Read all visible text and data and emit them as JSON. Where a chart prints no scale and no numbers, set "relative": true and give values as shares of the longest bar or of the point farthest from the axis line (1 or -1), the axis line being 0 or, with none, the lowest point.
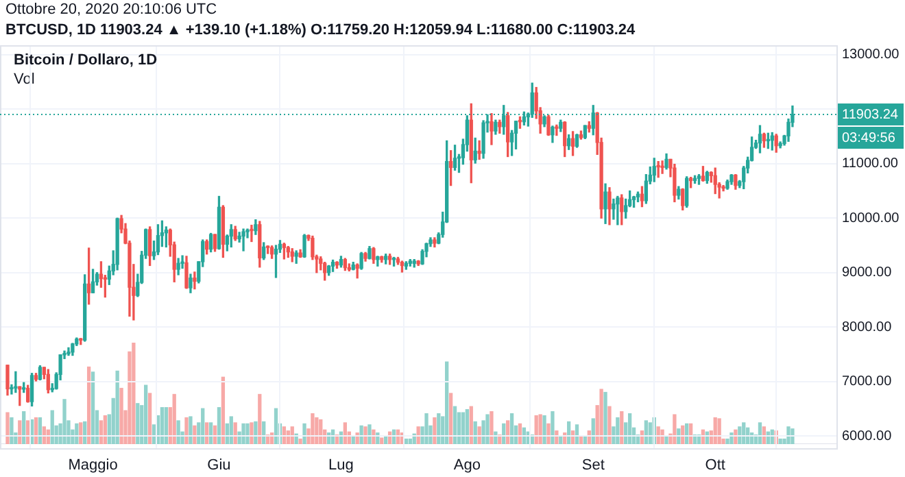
{
  "chart_data": [
    {
      "type": "candlestick",
      "title": "Bitcoin / Dollaro, 1D",
      "subtitle": "BTCUSD, 1D  11903.24 ▲ +139.10 (+1.18%) O:11759.20 H:12059.94 L:11680.00 C:11903.24",
      "annotations": [
        "Ottobre 20, 2020 20:10:06 UTC",
        "03:49:56"
      ],
      "categories": [
        null,
        null,
        null,
        null,
        null,
        null,
        null,
        null,
        null,
        null,
        null,
        null,
        null,
        null,
        null,
        null,
        null,
        null,
        null,
        null,
        null,
        "Maggio",
        null,
        null,
        null,
        null,
        null,
        null,
        null,
        null,
        null,
        null,
        null,
        null,
        null,
        null,
        null,
        null,
        null,
        null,
        null,
        null,
        null,
        null,
        null,
        null,
        null,
        null,
        null,
        null,
        null,
        null,
        "Giu",
        null,
        null,
        null,
        null,
        null,
        null,
        null,
        null,
        null,
        null,
        null,
        null,
        null,
        null,
        null,
        null,
        null,
        null,
        null,
        null,
        null,
        null,
        null,
        null,
        null,
        null,
        null,
        null,
        null,
        "Lug",
        null,
        null,
        null,
        null,
        null,
        null,
        null,
        null,
        null,
        null,
        null,
        null,
        null,
        null,
        null,
        null,
        null,
        null,
        null,
        null,
        null,
        null,
        null,
        null,
        null,
        null,
        null,
        null,
        null,
        null,
        "Ago",
        null,
        null,
        null,
        null,
        null,
        null,
        null,
        null,
        null,
        null,
        null,
        null,
        null,
        null,
        null,
        null,
        null,
        null,
        null,
        null,
        null,
        null,
        null,
        null,
        null,
        null,
        null,
        null,
        null,
        null,
        "Set",
        null,
        null,
        null,
        null,
        null,
        null,
        null,
        null,
        null,
        null,
        null,
        null,
        null,
        null,
        null,
        null,
        null,
        null,
        null,
        null,
        null,
        null,
        null,
        null,
        null,
        null,
        null,
        null,
        null,
        "Ott",
        null,
        null,
        null,
        null,
        null,
        null,
        null,
        null,
        null,
        null,
        null,
        null,
        null,
        null,
        null,
        null,
        null,
        null,
        null
      ],
      "ohlc": [
        [
          7300,
          7300,
          6750,
          6865
        ],
        [
          6865,
          6940,
          6770,
          6880
        ],
        [
          6880,
          7180,
          6800,
          6905
        ],
        [
          6905,
          6905,
          6560,
          6860
        ],
        [
          6860,
          6980,
          6800,
          6875
        ],
        [
          6875,
          6930,
          6620,
          6630
        ],
        [
          6630,
          7150,
          6550,
          7110
        ],
        [
          7110,
          7150,
          7010,
          7040
        ],
        [
          7040,
          7290,
          7030,
          7260
        ],
        [
          7260,
          7260,
          7050,
          7130
        ],
        [
          7130,
          7220,
          6790,
          6850
        ],
        [
          6850,
          6960,
          6810,
          6870
        ],
        [
          6870,
          7160,
          6860,
          7130
        ],
        [
          7130,
          7490,
          7030,
          7490
        ],
        [
          7490,
          7560,
          7420,
          7510
        ],
        [
          7510,
          7620,
          7480,
          7540
        ],
        [
          7540,
          7700,
          7480,
          7690
        ],
        [
          7690,
          7800,
          7660,
          7780
        ],
        [
          7780,
          7790,
          7680,
          7760
        ],
        [
          7760,
          8960,
          7740,
          8790
        ],
        [
          8790,
          9450,
          8420,
          8630
        ],
        [
          8630,
          9060,
          8630,
          8830
        ],
        [
          8830,
          9000,
          8770,
          8970
        ],
        [
          8970,
          9200,
          8730,
          8890
        ],
        [
          8890,
          8950,
          8550,
          8880
        ],
        [
          8880,
          9120,
          8780,
          9030
        ],
        [
          9030,
          9400,
          8960,
          9150
        ],
        [
          9150,
          10000,
          9050,
          9990
        ],
        [
          9990,
          10050,
          9730,
          9800
        ],
        [
          9800,
          9900,
          9530,
          9540
        ],
        [
          9540,
          9580,
          8200,
          8730
        ],
        [
          8730,
          9150,
          8130,
          8580
        ],
        [
          8580,
          8970,
          8560,
          8820
        ],
        [
          8820,
          9390,
          8800,
          9320
        ],
        [
          9320,
          9800,
          9260,
          9790
        ],
        [
          9790,
          9840,
          9130,
          9310
        ],
        [
          9310,
          9580,
          9240,
          9380
        ],
        [
          9380,
          9880,
          9330,
          9680
        ],
        [
          9680,
          9950,
          9480,
          9730
        ],
        [
          9730,
          9840,
          9470,
          9780
        ],
        [
          9780,
          9800,
          9300,
          9510
        ],
        [
          9510,
          9560,
          8830,
          9060
        ],
        [
          9060,
          9260,
          8960,
          9170
        ],
        [
          9170,
          9310,
          9080,
          9180
        ],
        [
          9180,
          9300,
          8710,
          8720
        ],
        [
          8720,
          8970,
          8630,
          8900
        ],
        [
          8900,
          9010,
          8700,
          8840
        ],
        [
          8840,
          9200,
          8810,
          9200
        ],
        [
          9200,
          9600,
          9110,
          9570
        ],
        [
          9570,
          9600,
          9340,
          9430
        ],
        [
          9430,
          9720,
          9380,
          9700
        ],
        [
          9700,
          9700,
          9390,
          9440
        ],
        [
          9440,
          10400,
          9430,
          10200
        ],
        [
          10200,
          10230,
          9280,
          9520
        ],
        [
          9520,
          9690,
          9400,
          9670
        ],
        [
          9670,
          9880,
          9470,
          9790
        ],
        [
          9790,
          9850,
          9590,
          9620
        ],
        [
          9620,
          9740,
          9560,
          9670
        ],
        [
          9670,
          9800,
          9400,
          9750
        ],
        [
          9750,
          9800,
          9640,
          9780
        ],
        [
          9780,
          9870,
          9570,
          9770
        ],
        [
          9770,
          9970,
          9700,
          9880
        ],
        [
          9880,
          9940,
          9100,
          9270
        ],
        [
          9270,
          9550,
          9240,
          9470
        ],
        [
          9470,
          9490,
          9350,
          9460
        ],
        [
          9460,
          9490,
          9260,
          9340
        ],
        [
          9340,
          9500,
          8910,
          9430
        ],
        [
          9430,
          9590,
          9370,
          9520
        ],
        [
          9520,
          9540,
          9250,
          9460
        ],
        [
          9460,
          9480,
          9280,
          9380
        ],
        [
          9380,
          9440,
          9200,
          9300
        ],
        [
          9300,
          9400,
          9170,
          9360
        ],
        [
          9360,
          9420,
          9280,
          9290
        ],
        [
          9290,
          9700,
          9280,
          9680
        ],
        [
          9680,
          9690,
          9590,
          9630
        ],
        [
          9630,
          9670,
          9240,
          9290
        ],
        [
          9290,
          9320,
          9000,
          9250
        ],
        [
          9250,
          9290,
          9050,
          9170
        ],
        [
          9170,
          9190,
          8860,
          9000
        ],
        [
          9000,
          9130,
          8950,
          9120
        ],
        [
          9120,
          9230,
          9020,
          9190
        ],
        [
          9190,
          9200,
          9080,
          9140
        ],
        [
          9140,
          9300,
          9100,
          9240
        ],
        [
          9240,
          9260,
          9040,
          9090
        ],
        [
          9090,
          9160,
          9030,
          9060
        ],
        [
          9060,
          9190,
          9050,
          9140
        ],
        [
          9140,
          9160,
          8900,
          9080
        ],
        [
          9080,
          9370,
          9060,
          9350
        ],
        [
          9350,
          9370,
          9210,
          9260
        ],
        [
          9260,
          9480,
          9250,
          9440
        ],
        [
          9440,
          9460,
          9170,
          9240
        ],
        [
          9240,
          9300,
          9120,
          9290
        ],
        [
          9290,
          9300,
          9190,
          9240
        ],
        [
          9240,
          9340,
          9160,
          9300
        ],
        [
          9300,
          9340,
          9150,
          9240
        ],
        [
          9240,
          9280,
          9120,
          9250
        ],
        [
          9250,
          9280,
          9150,
          9190
        ],
        [
          9190,
          9210,
          9010,
          9130
        ],
        [
          9120,
          9200,
          9060,
          9170
        ],
        [
          9170,
          9240,
          9120,
          9210
        ],
        [
          9170,
          9240,
          9100,
          9210
        ],
        [
          9210,
          9220,
          9130,
          9160
        ],
        [
          9160,
          9420,
          9150,
          9390
        ],
        [
          9390,
          9540,
          9290,
          9530
        ],
        [
          9530,
          9640,
          9480,
          9600
        ],
        [
          9600,
          9640,
          9470,
          9540
        ],
        [
          9540,
          9730,
          9530,
          9700
        ],
        [
          9700,
          10110,
          9650,
          9930
        ],
        [
          9930,
          11420,
          9920,
          11040
        ],
        [
          11040,
          11240,
          10600,
          10930
        ],
        [
          10930,
          11340,
          10880,
          11100
        ],
        [
          11100,
          11170,
          10840,
          11110
        ],
        [
          11110,
          11450,
          10990,
          11350
        ],
        [
          11350,
          11880,
          11230,
          11800
        ],
        [
          11800,
          12100,
          10650,
          11070
        ],
        [
          11070,
          11470,
          11010,
          11230
        ],
        [
          11230,
          11420,
          11080,
          11190
        ],
        [
          11190,
          11790,
          11100,
          11750
        ],
        [
          11750,
          11900,
          11580,
          11770
        ],
        [
          11770,
          11920,
          11350,
          11600
        ],
        [
          11600,
          11800,
          11540,
          11760
        ],
        [
          11760,
          11800,
          11560,
          11680
        ],
        [
          11680,
          12070,
          11540,
          11880
        ],
        [
          11880,
          11940,
          11130,
          11400
        ],
        [
          11400,
          11610,
          11150,
          11560
        ],
        [
          11560,
          11780,
          11270,
          11780
        ],
        [
          11780,
          11860,
          11650,
          11770
        ],
        [
          11770,
          11950,
          11710,
          11860
        ],
        [
          11860,
          11930,
          11690,
          11910
        ],
        [
          11910,
          12480,
          11850,
          12300
        ],
        [
          12300,
          12400,
          11830,
          11970
        ],
        [
          11970,
          12030,
          11560,
          11730
        ],
        [
          11730,
          11880,
          11680,
          11860
        ],
        [
          11860,
          11890,
          11520,
          11530
        ],
        [
          11530,
          11690,
          11390,
          11670
        ],
        [
          11670,
          11710,
          11520,
          11650
        ],
        [
          11650,
          11800,
          11590,
          11760
        ],
        [
          11760,
          11770,
          11130,
          11330
        ],
        [
          11330,
          11530,
          11260,
          11460
        ],
        [
          11460,
          11590,
          11150,
          11320
        ],
        [
          11320,
          11540,
          11300,
          11530
        ],
        [
          11530,
          11600,
          11450,
          11480
        ],
        [
          11480,
          11700,
          11460,
          11700
        ],
        [
          11700,
          11770,
          11580,
          11650
        ],
        [
          11650,
          12070,
          11530,
          11930
        ],
        [
          11930,
          11940,
          11170,
          11390
        ],
        [
          11390,
          11470,
          10000,
          10170
        ],
        [
          10170,
          10630,
          9900,
          10480
        ],
        [
          10480,
          10560,
          9880,
          10170
        ],
        [
          10170,
          10350,
          9980,
          10260
        ],
        [
          10260,
          10400,
          9880,
          10370
        ],
        [
          10370,
          10430,
          9880,
          10120
        ],
        [
          10120,
          10350,
          10000,
          10230
        ],
        [
          10230,
          10500,
          10210,
          10340
        ],
        [
          10340,
          10400,
          10200,
          10390
        ],
        [
          10390,
          10480,
          10300,
          10440
        ],
        [
          10440,
          10580,
          10210,
          10320
        ],
        [
          10320,
          10800,
          10270,
          10680
        ],
        [
          10680,
          10940,
          10630,
          10790
        ],
        [
          10790,
          11100,
          10670,
          10950
        ],
        [
          10950,
          11040,
          10750,
          10940
        ],
        [
          10940,
          11050,
          10820,
          10930
        ],
        [
          10930,
          11180,
          10900,
          11080
        ],
        [
          11080,
          11080,
          10760,
          10920
        ],
        [
          10920,
          10990,
          10300,
          10420
        ],
        [
          10420,
          10580,
          10350,
          10530
        ],
        [
          10530,
          10540,
          10150,
          10230
        ],
        [
          10230,
          10760,
          10200,
          10730
        ],
        [
          10730,
          10750,
          10560,
          10690
        ],
        [
          10690,
          10780,
          10640,
          10730
        ],
        [
          10730,
          10800,
          10620,
          10770
        ],
        [
          10770,
          10950,
          10680,
          10690
        ],
        [
          10690,
          10860,
          10640,
          10840
        ],
        [
          10840,
          10850,
          10660,
          10780
        ],
        [
          10780,
          10920,
          10450,
          10620
        ],
        [
          10620,
          10650,
          10370,
          10570
        ],
        [
          10570,
          10600,
          10500,
          10550
        ],
        [
          10550,
          10700,
          10530,
          10670
        ],
        [
          10670,
          10800,
          10620,
          10790
        ],
        [
          10790,
          10800,
          10530,
          10600
        ],
        [
          10600,
          10690,
          10560,
          10670
        ],
        [
          10670,
          10950,
          10540,
          10920
        ],
        [
          10920,
          11120,
          10830,
          11060
        ],
        [
          11060,
          11490,
          11050,
          11300
        ],
        [
          11300,
          11430,
          11280,
          11380
        ],
        [
          11380,
          11700,
          11200,
          11540
        ],
        [
          11540,
          11560,
          11300,
          11420
        ],
        [
          11420,
          11560,
          11280,
          11430
        ],
        [
          11430,
          11570,
          11250,
          11510
        ],
        [
          11510,
          11540,
          11210,
          11330
        ],
        [
          11330,
          11400,
          11290,
          11370
        ],
        [
          11370,
          11520,
          11340,
          11510
        ],
        [
          11510,
          11820,
          11410,
          11760
        ],
        [
          11759.2,
          12059.94,
          11680.0,
          11903.24
        ]
      ],
      "colors": [
        "#ef5350",
        "#26a69a",
        "#26a69a",
        "#ef5350",
        "#26a69a",
        "#ef5350",
        "#26a69a",
        "#ef5350",
        "#26a69a",
        "#ef5350",
        "#ef5350",
        "#26a69a",
        "#26a69a",
        "#26a69a",
        "#26a69a",
        "#26a69a",
        "#26a69a",
        "#26a69a",
        "#ef5350",
        "#26a69a",
        "#ef5350",
        "#26a69a",
        "#26a69a",
        "#ef5350",
        "#ef5350",
        "#26a69a",
        "#26a69a",
        "#26a69a",
        "#ef5350",
        "#ef5350",
        "#ef5350",
        "#ef5350",
        "#26a69a",
        "#26a69a",
        "#26a69a",
        "#ef5350",
        "#26a69a",
        "#26a69a",
        "#26a69a",
        "#26a69a",
        "#ef5350",
        "#ef5350",
        "#26a69a",
        "#26a69a",
        "#ef5350",
        "#26a69a",
        "#ef5350",
        "#26a69a",
        "#26a69a",
        "#ef5350",
        "#26a69a",
        "#ef5350",
        "#26a69a",
        "#ef5350",
        "#26a69a",
        "#26a69a",
        "#ef5350",
        "#26a69a",
        "#26a69a",
        "#26a69a",
        "#ef5350",
        "#26a69a",
        "#ef5350",
        "#26a69a",
        "#ef5350",
        "#ef5350",
        "#26a69a",
        "#26a69a",
        "#ef5350",
        "#ef5350",
        "#ef5350",
        "#26a69a",
        "#ef5350",
        "#26a69a",
        "#ef5350",
        "#ef5350",
        "#ef5350",
        "#ef5350",
        "#ef5350",
        "#26a69a",
        "#26a69a",
        "#ef5350",
        "#26a69a",
        "#ef5350",
        "#ef5350",
        "#26a69a",
        "#ef5350",
        "#26a69a",
        "#ef5350",
        "#26a69a",
        "#ef5350",
        "#26a69a",
        "#ef5350",
        "#26a69a",
        "#ef5350",
        "#26a69a",
        "#ef5350",
        "#ef5350",
        "#26a69a",
        "#26a69a",
        "#26a69a",
        "#ef5350",
        "#26a69a",
        "#26a69a",
        "#26a69a",
        "#ef5350",
        "#26a69a",
        "#26a69a",
        "#26a69a",
        "#ef5350",
        "#26a69a",
        "#26a69a",
        "#26a69a",
        "#26a69a",
        "#ef5350",
        "#26a69a",
        "#ef5350",
        "#26a69a",
        "#26a69a",
        "#ef5350",
        "#26a69a",
        "#ef5350",
        "#26a69a",
        "#ef5350",
        "#26a69a",
        "#26a69a",
        "#ef5350",
        "#26a69a",
        "#26a69a",
        "#26a69a",
        "#ef5350",
        "#ef5350",
        "#26a69a",
        "#ef5350",
        "#26a69a",
        "#ef5350",
        "#26a69a",
        "#ef5350",
        "#26a69a",
        "#ef5350",
        "#26a69a",
        "#ef5350",
        "#26a69a",
        "#ef5350",
        "#26a69a",
        "#ef5350",
        "#ef5350",
        "#26a69a",
        "#ef5350",
        "#26a69a",
        "#26a69a",
        "#ef5350",
        "#26a69a",
        "#26a69a",
        "#26a69a",
        "#26a69a",
        "#ef5350",
        "#26a69a",
        "#26a69a",
        "#26a69a",
        "#ef5350",
        "#ef5350",
        "#26a69a",
        "#ef5350",
        "#ef5350",
        "#26a69a",
        "#ef5350",
        "#26a69a",
        "#ef5350",
        "#26a69a",
        "#26a69a",
        "#ef5350",
        "#26a69a",
        "#ef5350",
        "#ef5350",
        "#ef5350",
        "#ef5350",
        "#26a69a",
        "#26a69a",
        "#ef5350",
        "#26a69a",
        "#26a69a",
        "#26a69a",
        "#26a69a",
        "#26a69a",
        "#26a69a",
        "#ef5350",
        "#26a69a",
        "#26a69a",
        "#ef5350",
        "#26a69a",
        "#26a69a",
        "#26a69a",
        "#26a69a"
      ],
      "ylim": [
        5775,
        13175
      ],
      "yticks": [
        {
          "value": 6000,
          "label": "6000.00"
        },
        {
          "value": 7000,
          "label": "7000.00"
        },
        {
          "value": 8000,
          "label": "8000.00"
        },
        {
          "value": 9000,
          "label": "9000.00"
        },
        {
          "value": 10000,
          "label": "10000.00"
        },
        {
          "value": 11000,
          "label": "11000.00"
        },
        {
          "value": 12000,
          "label": null
        },
        {
          "value": 13000,
          "label": "13000.00"
        }
      ],
      "ref_lines": [
        {
          "axis": "y",
          "value": 11903.24,
          "label": "11903.24",
          "color": "#26a69a",
          "line_style": "dotted"
        }
      ],
      "grid": true
    },
    {
      "type": "bar",
      "title": "Vol",
      "relative": true,
      "categories": [
        null,
        null,
        null,
        null,
        null,
        null,
        null,
        null,
        null,
        null,
        null,
        null,
        null,
        null,
        null,
        null,
        null,
        null,
        null,
        null,
        null,
        null,
        null,
        null,
        null,
        null,
        null,
        null,
        null,
        null,
        null,
        null,
        null,
        null,
        null,
        null,
        null,
        null,
        null,
        null,
        null,
        null,
        null,
        null,
        null,
        null,
        null,
        null,
        null,
        null,
        null,
        null,
        null,
        null,
        null,
        null,
        null,
        null,
        null,
        null,
        null,
        null,
        null,
        null,
        null,
        null,
        null,
        null,
        null,
        null,
        null,
        null,
        null,
        null,
        null,
        null,
        null,
        null,
        null,
        null,
        null,
        null,
        null,
        null,
        null,
        null,
        null,
        null,
        null,
        null,
        null,
        null,
        null,
        null,
        null,
        null,
        null,
        null,
        null,
        null,
        null,
        null,
        null,
        null,
        null,
        null,
        null,
        null,
        null,
        null,
        null,
        null,
        null,
        null,
        null,
        null,
        null,
        null,
        null,
        null,
        null,
        null,
        null,
        null,
        null,
        null,
        null,
        null,
        null,
        null,
        null,
        null,
        null,
        null,
        null,
        null,
        null,
        null,
        null,
        null,
        null,
        null,
        null,
        null,
        null,
        null,
        null,
        null,
        null,
        null,
        null,
        null,
        null,
        null,
        null,
        null,
        null,
        null,
        null,
        null,
        null,
        null,
        null,
        null,
        null,
        null,
        null,
        null,
        null,
        null,
        null,
        null,
        null,
        null,
        null,
        null,
        null,
        null,
        null,
        null,
        null,
        null,
        null,
        null,
        null,
        null,
        null,
        null,
        null,
        null,
        null,
        null,
        null,
        null
      ],
      "values": [
        0.31,
        0.26,
        0.11,
        0.23,
        0.32,
        0.23,
        0.24,
        0.26,
        0.26,
        0.17,
        0.14,
        0.33,
        0.18,
        0.2,
        0.44,
        0.23,
        0.14,
        0.2,
        0.21,
        0.22,
        0.76,
        0.71,
        0.33,
        0.23,
        0.28,
        0.29,
        0.45,
        0.72,
        0.55,
        0.33,
        0.91,
        1,
        0.4,
        0.38,
        0.58,
        0.5,
        0.19,
        0.28,
        0.36,
        0.36,
        0.36,
        0.49,
        0.23,
        0.12,
        0.26,
        0.27,
        0.18,
        0.21,
        0.35,
        0.21,
        0.21,
        0.18,
        0.36,
        0.66,
        0.2,
        0.27,
        0.21,
        0.12,
        0.2,
        0.2,
        0.21,
        0.22,
        0.49,
        0.22,
        0.09,
        0.11,
        0.35,
        0.2,
        0.17,
        0.13,
        0.17,
        0.1,
        0.05,
        0.2,
        0.15,
        0.3,
        0.26,
        0.24,
        0.14,
        0.11,
        0.14,
        0.09,
        0.12,
        0.21,
        0.12,
        0.08,
        0.11,
        0.18,
        0.17,
        0.19,
        0.14,
        0.11,
        0.06,
        0.08,
        0.12,
        0.14,
        0.14,
        0.11,
        0.05,
        0.05,
        0.1,
        0.17,
        0.17,
        0.3,
        0.18,
        0.26,
        0.3,
        0.27,
        0.81,
        0.5,
        0.37,
        0.31,
        0.31,
        0.34,
        0.37,
        0.22,
        0.17,
        0.23,
        0.29,
        0.32,
        0.12,
        0.09,
        0.2,
        0.23,
        0.3,
        0.18,
        0.2,
        0.16,
        0.12,
        0.09,
        0.28,
        0.29,
        0.28,
        0.2,
        0.32,
        0.13,
        0.08,
        0.11,
        0.22,
        0.13,
        0.19,
        0.08,
        0.08,
        0.13,
        0.25,
        0.38,
        0.54,
        0.51,
        0.37,
        0.17,
        0.26,
        0.32,
        0.21,
        0.3,
        0.16,
        0.09,
        0.13,
        0.23,
        0.21,
        0.26,
        0.17,
        0.14,
        0.08,
        0.1,
        0.29,
        0.15,
        0.18,
        0.2,
        0.2,
        0.09,
        0.09,
        0.14,
        0.12,
        0.13,
        0.26,
        0.25,
        0.05,
        0.05,
        0.11,
        0.14,
        0.17,
        0.21,
        0.16,
        0.11,
        0.09,
        0.21,
        0.17,
        0.12,
        0.14,
        0.13,
        0.05,
        0.05,
        0.17,
        0.15
      ],
      "colors": [
        "#f7a9a7",
        "#92d2cc",
        "#92d2cc",
        "#f7a9a7",
        "#92d2cc",
        "#f7a9a7",
        "#92d2cc",
        "#f7a9a7",
        "#92d2cc",
        "#f7a9a7",
        "#f7a9a7",
        "#92d2cc",
        "#92d2cc",
        "#92d2cc",
        "#92d2cc",
        "#92d2cc",
        "#92d2cc",
        "#92d2cc",
        "#f7a9a7",
        "#92d2cc",
        "#f7a9a7",
        "#92d2cc",
        "#92d2cc",
        "#f7a9a7",
        "#f7a9a7",
        "#92d2cc",
        "#92d2cc",
        "#92d2cc",
        "#f7a9a7",
        "#f7a9a7",
        "#f7a9a7",
        "#f7a9a7",
        "#92d2cc",
        "#92d2cc",
        "#92d2cc",
        "#f7a9a7",
        "#92d2cc",
        "#92d2cc",
        "#92d2cc",
        "#92d2cc",
        "#f7a9a7",
        "#f7a9a7",
        "#92d2cc",
        "#92d2cc",
        "#f7a9a7",
        "#92d2cc",
        "#f7a9a7",
        "#92d2cc",
        "#92d2cc",
        "#f7a9a7",
        "#92d2cc",
        "#f7a9a7",
        "#92d2cc",
        "#f7a9a7",
        "#92d2cc",
        "#92d2cc",
        "#f7a9a7",
        "#92d2cc",
        "#92d2cc",
        "#92d2cc",
        "#f7a9a7",
        "#92d2cc",
        "#f7a9a7",
        "#92d2cc",
        "#f7a9a7",
        "#f7a9a7",
        "#92d2cc",
        "#92d2cc",
        "#f7a9a7",
        "#f7a9a7",
        "#f7a9a7",
        "#92d2cc",
        "#f7a9a7",
        "#92d2cc",
        "#f7a9a7",
        "#f7a9a7",
        "#f7a9a7",
        "#f7a9a7",
        "#f7a9a7",
        "#92d2cc",
        "#92d2cc",
        "#f7a9a7",
        "#92d2cc",
        "#f7a9a7",
        "#f7a9a7",
        "#92d2cc",
        "#f7a9a7",
        "#92d2cc",
        "#f7a9a7",
        "#92d2cc",
        "#f7a9a7",
        "#92d2cc",
        "#f7a9a7",
        "#92d2cc",
        "#f7a9a7",
        "#92d2cc",
        "#f7a9a7",
        "#f7a9a7",
        "#92d2cc",
        "#92d2cc",
        "#92d2cc",
        "#f7a9a7",
        "#92d2cc",
        "#92d2cc",
        "#92d2cc",
        "#f7a9a7",
        "#92d2cc",
        "#92d2cc",
        "#92d2cc",
        "#f7a9a7",
        "#92d2cc",
        "#92d2cc",
        "#92d2cc",
        "#92d2cc",
        "#f7a9a7",
        "#92d2cc",
        "#f7a9a7",
        "#92d2cc",
        "#92d2cc",
        "#f7a9a7",
        "#92d2cc",
        "#f7a9a7",
        "#92d2cc",
        "#f7a9a7",
        "#92d2cc",
        "#92d2cc",
        "#f7a9a7",
        "#92d2cc",
        "#92d2cc",
        "#92d2cc",
        "#f7a9a7",
        "#f7a9a7",
        "#92d2cc",
        "#f7a9a7",
        "#92d2cc",
        "#f7a9a7",
        "#92d2cc",
        "#f7a9a7",
        "#92d2cc",
        "#f7a9a7",
        "#92d2cc",
        "#f7a9a7",
        "#92d2cc",
        "#f7a9a7",
        "#92d2cc",
        "#f7a9a7",
        "#f7a9a7",
        "#92d2cc",
        "#f7a9a7",
        "#92d2cc",
        "#92d2cc",
        "#f7a9a7",
        "#92d2cc",
        "#92d2cc",
        "#92d2cc",
        "#92d2cc",
        "#f7a9a7",
        "#92d2cc",
        "#92d2cc",
        "#92d2cc",
        "#f7a9a7",
        "#f7a9a7",
        "#92d2cc",
        "#f7a9a7",
        "#f7a9a7",
        "#92d2cc",
        "#f7a9a7",
        "#92d2cc",
        "#f7a9a7",
        "#92d2cc",
        "#92d2cc",
        "#f7a9a7",
        "#92d2cc",
        "#f7a9a7",
        "#f7a9a7",
        "#f7a9a7",
        "#f7a9a7",
        "#92d2cc",
        "#92d2cc",
        "#f7a9a7",
        "#92d2cc",
        "#92d2cc",
        "#92d2cc",
        "#92d2cc",
        "#92d2cc",
        "#92d2cc",
        "#f7a9a7",
        "#92d2cc",
        "#92d2cc",
        "#f7a9a7",
        "#92d2cc",
        "#92d2cc",
        "#92d2cc",
        "#92d2cc"
      ]
    }
  ]
}
